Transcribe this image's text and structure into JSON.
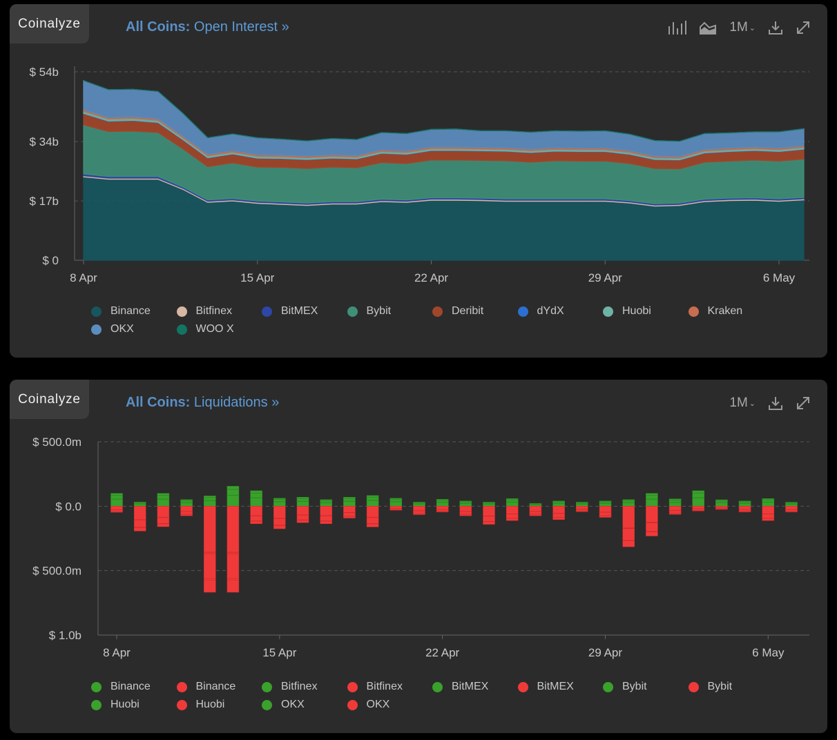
{
  "panels": {
    "open_interest": {
      "brand": "Coinalyze",
      "title_prefix": "All Coins:",
      "title_text": "Open Interest »",
      "period": "1M"
    },
    "liquidations": {
      "brand": "Coinalyze",
      "title_prefix": "All Coins:",
      "title_text": "Liquidations »",
      "period": "1M"
    }
  },
  "icons": {
    "toolbar_oi": [
      "bar-chart-icon",
      "area-chart-icon",
      "download-icon",
      "expand-icon"
    ],
    "toolbar_liq": [
      "download-icon",
      "expand-icon"
    ]
  },
  "colors": {
    "panel_bg": "#2b2b2b",
    "accent_blue": "#5d9bd6",
    "long_green": "#3aa12c",
    "short_red": "#f03a3a"
  },
  "chart_data": [
    {
      "type": "area",
      "stacked": true,
      "title": "All Coins: Open Interest",
      "x_tick_labels": [
        "8 Apr",
        "15 Apr",
        "22 Apr",
        "29 Apr",
        "6 May"
      ],
      "y_tick_labels": [
        "$ 0",
        "$ 17b",
        "$ 34b",
        "$ 54b"
      ],
      "y_ticks": [
        0,
        17,
        34,
        54
      ],
      "ylim": [
        0,
        54.8
      ],
      "y_unit": "billion USD",
      "x": [
        "8 Apr",
        "9 Apr",
        "10 Apr",
        "11 Apr",
        "12 Apr",
        "13 Apr",
        "14 Apr",
        "15 Apr",
        "16 Apr",
        "17 Apr",
        "18 Apr",
        "19 Apr",
        "20 Apr",
        "21 Apr",
        "22 Apr",
        "23 Apr",
        "24 Apr",
        "25 Apr",
        "26 Apr",
        "27 Apr",
        "28 Apr",
        "29 Apr",
        "30 Apr",
        "1 May",
        "2 May",
        "3 May",
        "4 May",
        "5 May",
        "6 May",
        "7 May"
      ],
      "grid": true,
      "legend_position": "bottom",
      "series": [
        {
          "name": "Binance",
          "color": "#17565f",
          "values": [
            23.9,
            23.2,
            23.2,
            23.2,
            20.3,
            16.6,
            17.0,
            16.3,
            16.0,
            15.7,
            16.1,
            16.1,
            16.8,
            16.6,
            17.2,
            17.2,
            17.1,
            16.9,
            16.9,
            16.9,
            16.9,
            16.9,
            16.4,
            15.5,
            15.7,
            16.8,
            17.1,
            17.2,
            16.9,
            17.3
          ]
        },
        {
          "name": "Bitfinex",
          "color": "#d9b6a3",
          "values": [
            0.3,
            0.3,
            0.3,
            0.3,
            0.3,
            0.3,
            0.3,
            0.3,
            0.3,
            0.3,
            0.3,
            0.3,
            0.3,
            0.3,
            0.3,
            0.3,
            0.3,
            0.3,
            0.3,
            0.3,
            0.3,
            0.3,
            0.3,
            0.3,
            0.3,
            0.3,
            0.3,
            0.3,
            0.3,
            0.3
          ]
        },
        {
          "name": "BitMEX",
          "color": "#2e46a5",
          "values": [
            0.5,
            0.5,
            0.5,
            0.5,
            0.4,
            0.4,
            0.4,
            0.4,
            0.4,
            0.4,
            0.4,
            0.4,
            0.4,
            0.4,
            0.4,
            0.4,
            0.4,
            0.4,
            0.4,
            0.4,
            0.4,
            0.4,
            0.4,
            0.4,
            0.4,
            0.4,
            0.4,
            0.4,
            0.4,
            0.4
          ]
        },
        {
          "name": "Bybit",
          "color": "#3f8f78",
          "values": [
            14.1,
            12.9,
            13.0,
            12.6,
            10.9,
            9.5,
            10.2,
            9.7,
            9.9,
            9.9,
            9.9,
            9.7,
            10.5,
            10.4,
            10.8,
            10.8,
            10.8,
            10.9,
            10.5,
            10.9,
            10.8,
            10.8,
            10.6,
            10.1,
            9.8,
            10.6,
            10.6,
            10.8,
            10.8,
            11.0
          ]
        },
        {
          "name": "Deribit",
          "color": "#a2462b",
          "values": [
            3.2,
            2.9,
            3.0,
            2.8,
            2.6,
            2.5,
            2.5,
            2.5,
            2.5,
            2.5,
            2.5,
            2.5,
            2.6,
            2.6,
            2.7,
            2.7,
            2.7,
            2.7,
            2.7,
            2.7,
            2.7,
            2.7,
            2.6,
            2.5,
            2.5,
            2.6,
            2.7,
            2.7,
            2.7,
            2.8
          ]
        },
        {
          "name": "dYdX",
          "color": "#2c6fd1",
          "values": [
            0.1,
            0.1,
            0.1,
            0.1,
            0.1,
            0.1,
            0.1,
            0.1,
            0.1,
            0.1,
            0.1,
            0.1,
            0.1,
            0.1,
            0.1,
            0.1,
            0.1,
            0.1,
            0.1,
            0.1,
            0.1,
            0.1,
            0.1,
            0.1,
            0.1,
            0.1,
            0.1,
            0.1,
            0.1,
            0.1
          ]
        },
        {
          "name": "Huobi",
          "color": "#6fb3a5",
          "values": [
            0.6,
            0.6,
            0.6,
            0.6,
            0.5,
            0.5,
            0.5,
            0.5,
            0.5,
            0.5,
            0.5,
            0.5,
            0.5,
            0.5,
            0.5,
            0.5,
            0.5,
            0.5,
            0.5,
            0.5,
            0.5,
            0.5,
            0.5,
            0.5,
            0.5,
            0.5,
            0.5,
            0.5,
            0.5,
            0.5
          ]
        },
        {
          "name": "Kraken",
          "color": "#c86d4f",
          "values": [
            0.4,
            0.4,
            0.4,
            0.4,
            0.4,
            0.4,
            0.4,
            0.4,
            0.4,
            0.4,
            0.4,
            0.4,
            0.4,
            0.4,
            0.4,
            0.4,
            0.4,
            0.4,
            0.4,
            0.4,
            0.4,
            0.4,
            0.4,
            0.4,
            0.4,
            0.4,
            0.4,
            0.4,
            0.4,
            0.4
          ]
        },
        {
          "name": "OKX",
          "color": "#5c8dbf",
          "values": [
            8.4,
            8.0,
            7.9,
            7.9,
            6.6,
            4.8,
            4.8,
            4.9,
            4.6,
            4.4,
            4.7,
            4.6,
            5.0,
            5.0,
            5.1,
            5.2,
            4.8,
            4.9,
            4.9,
            4.9,
            4.9,
            5.0,
            4.8,
            4.5,
            4.4,
            4.6,
            4.4,
            4.4,
            4.7,
            4.9
          ]
        },
        {
          "name": "WOO X",
          "color": "#127462",
          "values": [
            0,
            0,
            0,
            0,
            0,
            0,
            0,
            0,
            0,
            0,
            0,
            0,
            0,
            0,
            0,
            0,
            0,
            0,
            0,
            0,
            0,
            0,
            0,
            0,
            0,
            0,
            0,
            0,
            0,
            0
          ]
        }
      ]
    },
    {
      "type": "bar",
      "stacked": true,
      "title": "All Coins: Liquidations",
      "x_tick_labels": [
        "8 Apr",
        "15 Apr",
        "22 Apr",
        "29 Apr",
        "6 May"
      ],
      "y_tick_labels": [
        "$ 500.0m",
        "$ 0.0",
        "$ 500.0m",
        "$ 1.0b"
      ],
      "y_ticks": [
        500,
        0,
        -500,
        -1000
      ],
      "ylim": [
        -1000,
        500
      ],
      "y_unit": "million USD (longs up, shorts down)",
      "x": [
        "8 Apr",
        "9 Apr",
        "10 Apr",
        "11 Apr",
        "12 Apr",
        "13 Apr",
        "14 Apr",
        "15 Apr",
        "16 Apr",
        "17 Apr",
        "18 Apr",
        "19 Apr",
        "20 Apr",
        "21 Apr",
        "22 Apr",
        "23 Apr",
        "24 Apr",
        "25 Apr",
        "26 Apr",
        "27 Apr",
        "28 Apr",
        "29 Apr",
        "30 Apr",
        "1 May",
        "2 May",
        "3 May",
        "4 May",
        "5 May",
        "6 May",
        "7 May"
      ],
      "grid": true,
      "legend_position": "bottom",
      "series": [
        {
          "name": "Binance",
          "side": "up",
          "color": "#3aa12c",
          "values": [
            55,
            18,
            55,
            27,
            43,
            85,
            65,
            35,
            38,
            27,
            38,
            46,
            35,
            17,
            30,
            22,
            17,
            32,
            11,
            22,
            17,
            22,
            27,
            55,
            30,
            65,
            27,
            22,
            32,
            16
          ]
        },
        {
          "name": "Binance",
          "side": "down",
          "color": "#f03a3a",
          "values": [
            26,
            104,
            86,
            40,
            356,
            356,
            73,
            93,
            67,
            73,
            49,
            86,
            16,
            35,
            24,
            40,
            75,
            59,
            40,
            55,
            22,
            46,
            168,
            124,
            33,
            19,
            13,
            24,
            59,
            24
          ]
        },
        {
          "name": "Bitfinex",
          "side": "up",
          "color": "#3aa12c",
          "values": [
            1,
            1,
            1,
            1,
            1,
            1,
            1,
            1,
            1,
            1,
            1,
            1,
            1,
            1,
            1,
            1,
            1,
            1,
            1,
            1,
            1,
            1,
            1,
            1,
            1,
            1,
            1,
            1,
            1,
            1
          ]
        },
        {
          "name": "Bitfinex",
          "side": "down",
          "color": "#f03a3a",
          "values": [
            1,
            1,
            1,
            1,
            5,
            5,
            1,
            1,
            1,
            1,
            1,
            1,
            1,
            1,
            1,
            1,
            1,
            1,
            1,
            1,
            1,
            1,
            2,
            2,
            1,
            1,
            1,
            1,
            1,
            1
          ]
        },
        {
          "name": "BitMEX",
          "side": "up",
          "color": "#3aa12c",
          "values": [
            1,
            1,
            1,
            1,
            1,
            1,
            1,
            1,
            1,
            1,
            1,
            1,
            1,
            1,
            1,
            1,
            1,
            1,
            1,
            1,
            1,
            1,
            1,
            1,
            1,
            1,
            1,
            1,
            1,
            1
          ]
        },
        {
          "name": "BitMEX",
          "side": "down",
          "color": "#f03a3a",
          "values": [
            1,
            2,
            2,
            1,
            10,
            10,
            2,
            2,
            2,
            2,
            1,
            2,
            1,
            1,
            1,
            1,
            2,
            1,
            1,
            1,
            1,
            1,
            4,
            3,
            1,
            1,
            1,
            1,
            1,
            1
          ]
        },
        {
          "name": "Bybit",
          "side": "up",
          "color": "#3aa12c",
          "values": [
            27,
            8,
            27,
            14,
            22,
            43,
            34,
            16,
            19,
            14,
            19,
            22,
            16,
            8,
            14,
            11,
            8,
            16,
            5,
            11,
            8,
            11,
            14,
            27,
            16,
            34,
            13,
            11,
            16,
            8
          ]
        },
        {
          "name": "Bybit",
          "side": "down",
          "color": "#f03a3a",
          "values": [
            12,
            55,
            45,
            20,
            190,
            190,
            38,
            50,
            36,
            38,
            26,
            46,
            8,
            18,
            12,
            20,
            40,
            32,
            20,
            30,
            12,
            25,
            90,
            65,
            18,
            10,
            6,
            12,
            32,
            12
          ]
        },
        {
          "name": "Huobi",
          "side": "up",
          "color": "#3aa12c",
          "values": [
            2,
            1,
            2,
            1,
            2,
            3,
            2,
            1,
            1,
            1,
            1,
            2,
            1,
            1,
            1,
            1,
            1,
            1,
            1,
            1,
            1,
            1,
            1,
            2,
            1,
            2,
            1,
            1,
            1,
            1
          ]
        },
        {
          "name": "Huobi",
          "side": "down",
          "color": "#f03a3a",
          "values": [
            1,
            4,
            3,
            2,
            12,
            12,
            3,
            4,
            3,
            3,
            2,
            3,
            1,
            1,
            1,
            2,
            3,
            2,
            2,
            2,
            1,
            2,
            6,
            5,
            1,
            1,
            1,
            1,
            2,
            1
          ]
        },
        {
          "name": "OKX",
          "side": "up",
          "color": "#3aa12c",
          "values": [
            14,
            4,
            14,
            7,
            11,
            22,
            17,
            8,
            10,
            7,
            10,
            11,
            8,
            4,
            7,
            5,
            4,
            8,
            3,
            5,
            4,
            5,
            7,
            14,
            8,
            17,
            7,
            5,
            8,
            4
          ]
        },
        {
          "name": "OKX",
          "side": "down",
          "color": "#f03a3a",
          "values": [
            6,
            27,
            22,
            10,
            95,
            95,
            19,
            25,
            18,
            19,
            13,
            23,
            4,
            9,
            6,
            10,
            20,
            16,
            10,
            15,
            6,
            12,
            45,
            32,
            9,
            5,
            3,
            6,
            16,
            6
          ]
        }
      ]
    }
  ]
}
